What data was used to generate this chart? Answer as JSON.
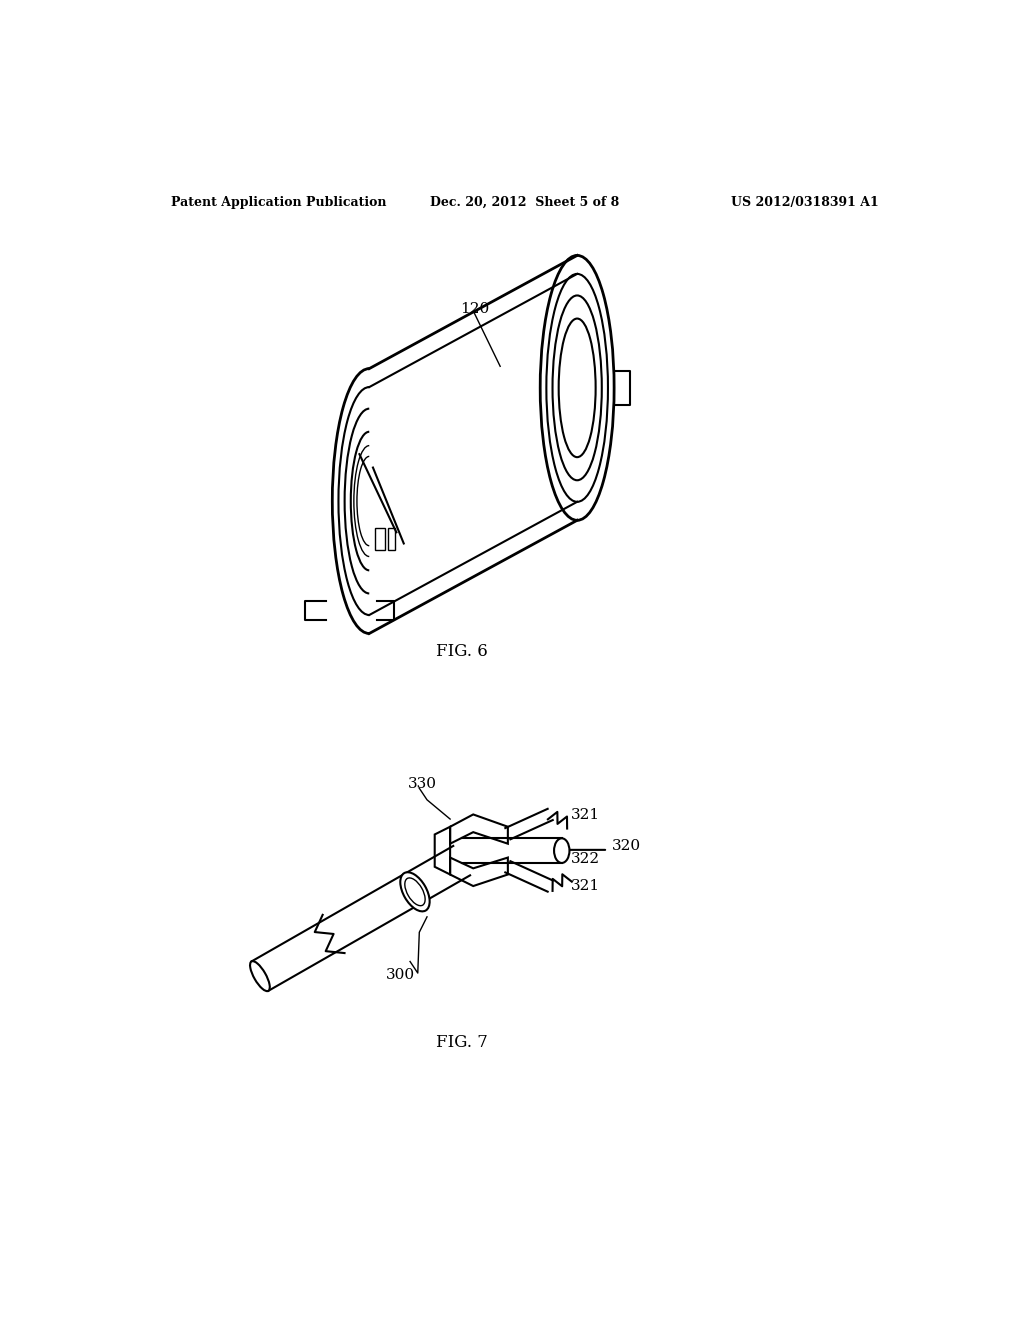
{
  "bg_color": "#ffffff",
  "header_left": "Patent Application Publication",
  "header_mid": "Dec. 20, 2012  Sheet 5 of 8",
  "header_right": "US 2012/0318391 A1",
  "fig6_label": "FIG. 6",
  "fig7_label": "FIG. 7",
  "label_120": "120",
  "label_330": "330",
  "label_321a": "321",
  "label_321b": "321",
  "label_322": "322",
  "label_320": "320",
  "label_300": "300",
  "lw_thin": 1.0,
  "lw_med": 1.5,
  "lw_thick": 2.0
}
